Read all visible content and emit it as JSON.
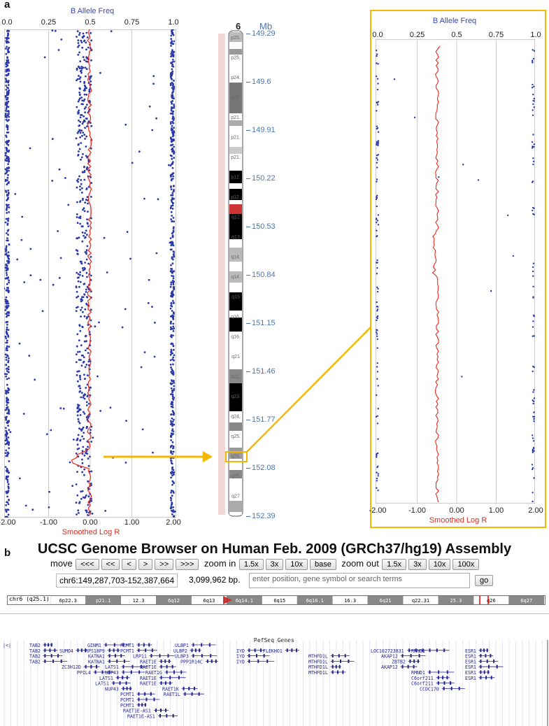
{
  "panel_a": {
    "letter": "a",
    "left_plot": {
      "top_title": "B Allele Freq",
      "top_ticks": [
        "0.0",
        "0.25",
        "0.5",
        "0.75",
        "1.0"
      ],
      "bottom_title": "Smoothed Log R",
      "bottom_ticks": [
        "-2.00",
        "-1.00",
        "0.00",
        "1.00",
        "2.00"
      ]
    },
    "chromosome": {
      "name": "6",
      "unit": "Mb",
      "mb_ticks": [
        "149.29",
        "149.6",
        "149.91",
        "150.22",
        "150.53",
        "150.84",
        "151.15",
        "151.46",
        "151.77",
        "152.08",
        "152.39"
      ],
      "bands": [
        "p25.",
        "p25.",
        "p24.",
        "p22.",
        "p21.",
        "p21.",
        "p21.",
        "p12.",
        "p12.",
        "q12",
        "q13",
        "q14.",
        "q14.",
        "q15",
        "q16.",
        "q16.",
        "q21",
        "q22.",
        "q23.",
        "q24.",
        "q25.",
        "q25.",
        "q25.",
        "q27"
      ]
    },
    "zoom_plot": {
      "top_title": "B Allele Freq",
      "top_ticks": [
        "0.0",
        "0.25",
        "0.5",
        "0.75",
        "1.0"
      ],
      "bottom_title": "Smoothed Log R",
      "bottom_ticks": [
        "-2.00",
        "-1.00",
        "0.00",
        "1.00",
        "2.00"
      ]
    },
    "colors": {
      "baf_points": "#2b3aa8",
      "log_r": "#e8261c",
      "highlight": "#f5b700",
      "frame": "#999"
    }
  },
  "panel_b": {
    "letter": "b",
    "title": "UCSC Genome Browser on Human Feb. 2009 (GRCh37/hg19) Assembly",
    "move_label": "move",
    "move_buttons": [
      "<<<",
      "<<",
      "<",
      ">",
      ">>",
      ">>>"
    ],
    "zoom_in_label": "zoom in",
    "zoom_in_buttons": [
      "1.5x",
      "3x",
      "10x",
      "base"
    ],
    "zoom_out_label": "zoom out",
    "zoom_out_buttons": [
      "1.5x",
      "3x",
      "10x",
      "100x"
    ],
    "position": "chr6:149,287,703-152,387,664",
    "bp": "3,099,962 bp.",
    "search_placeholder": "enter position, gene symbol or search terms",
    "go_label": "go",
    "ideogram_label": "chr6 (q25.1)",
    "ideogram_bands": [
      "6p22.3",
      "p21.1",
      "12.3",
      "6q12",
      "6q13",
      "6q14.1",
      "6q15",
      "6q16.1",
      "16.3",
      "6q21",
      "q22.31",
      "25.3",
      "q26",
      "6q27"
    ],
    "track_title": "RefSeq Genes",
    "genes": [
      {
        "name": "TAB2",
        "row": 0
      },
      {
        "name": "TAB2",
        "row": 1
      },
      {
        "name": "TAB2",
        "row": 2
      },
      {
        "name": "TAB2",
        "row": 3
      },
      {
        "name": "SUMO4",
        "row": 1
      },
      {
        "name": "ZC3H12D",
        "row": 4
      },
      {
        "name": "PPIL4",
        "row": 5
      },
      {
        "name": "GINM1",
        "row": 0
      },
      {
        "name": "RPS18P9",
        "row": 1
      },
      {
        "name": "KATNA1",
        "row": 2
      },
      {
        "name": "KATNA1",
        "row": 3
      },
      {
        "name": "LATS1",
        "row": 4
      },
      {
        "name": "LATS1",
        "row": 6
      },
      {
        "name": "LATS1",
        "row": 7
      },
      {
        "name": "NUP43",
        "row": 5
      },
      {
        "name": "NUP43",
        "row": 8
      },
      {
        "name": "PCMT1",
        "row": 0
      },
      {
        "name": "PCMT1",
        "row": 1
      },
      {
        "name": "LRP11",
        "row": 2
      },
      {
        "name": "RAET1E",
        "row": 3
      },
      {
        "name": "RAET1E",
        "row": 4
      },
      {
        "name": "RAET1G",
        "row": 5
      },
      {
        "name": "RAET1E",
        "row": 6
      },
      {
        "name": "RAET1E",
        "row": 7
      },
      {
        "name": "PCMT1",
        "row": 9
      },
      {
        "name": "PCMT1",
        "row": 10
      },
      {
        "name": "PCMT1",
        "row": 11
      },
      {
        "name": "RAET1E-AS1",
        "row": 12
      },
      {
        "name": "RAET1E-AS1",
        "row": 13
      },
      {
        "name": "ULBP1",
        "row": 0
      },
      {
        "name": "ULBP2",
        "row": 1
      },
      {
        "name": "RAET1K",
        "row": 8
      },
      {
        "name": "RAET1L",
        "row": 9
      },
      {
        "name": "ULBP3",
        "row": 2
      },
      {
        "name": "PPP1R14C",
        "row": 3
      },
      {
        "name": "IYD",
        "row": 1
      },
      {
        "name": "IYD",
        "row": 2
      },
      {
        "name": "IYD",
        "row": 3
      },
      {
        "name": "FLEKHO1",
        "row": 1
      },
      {
        "name": "MTHFD1L",
        "row": 2
      },
      {
        "name": "MTHFD1L",
        "row": 3
      },
      {
        "name": "MTHFD1L",
        "row": 4
      },
      {
        "name": "MTHFD1L",
        "row": 5
      },
      {
        "name": "LOC102723831",
        "row": 1
      },
      {
        "name": "AKAP12",
        "row": 2
      },
      {
        "name": "ZBTB2",
        "row": 3
      },
      {
        "name": "AKAP12",
        "row": 4
      },
      {
        "name": "RMND1",
        "row": 1
      },
      {
        "name": "RMND1",
        "row": 5
      },
      {
        "name": "C6orf211",
        "row": 6
      },
      {
        "name": "C6orf211",
        "row": 7
      },
      {
        "name": "CCDC170",
        "row": 8
      },
      {
        "name": "ESR1",
        "row": 1
      },
      {
        "name": "ESR1",
        "row": 2
      },
      {
        "name": "ESR1",
        "row": 3
      },
      {
        "name": "ESR1",
        "row": 4
      },
      {
        "name": "ESR1",
        "row": 5
      },
      {
        "name": "ESR1",
        "row": 6
      }
    ]
  }
}
